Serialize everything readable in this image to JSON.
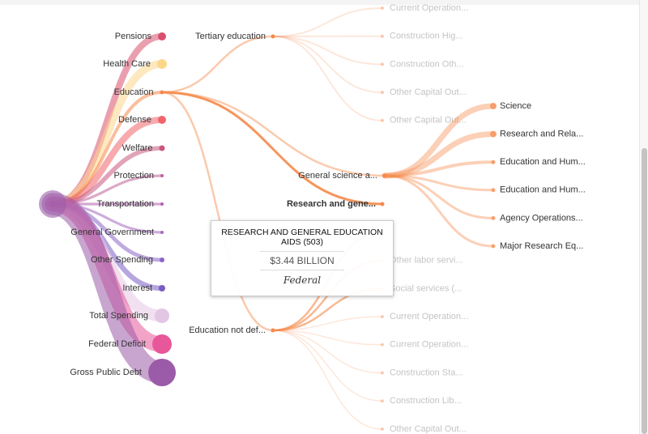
{
  "root_color": "#9b5ba8",
  "level1": [
    {
      "label": "Pensions",
      "color": "#d9506e",
      "r": 5
    },
    {
      "label": "Health Care",
      "color": "#fdd68a",
      "r": 6
    },
    {
      "label": "Education",
      "color": "#f5894a",
      "r": 2.5
    },
    {
      "label": "Defense",
      "color": "#f0656a",
      "r": 5
    },
    {
      "label": "Welfare",
      "color": "#c9577f",
      "r": 3.5
    },
    {
      "label": "Protection",
      "color": "#c0609a",
      "r": 2
    },
    {
      "label": "Transportation",
      "color": "#b25fb0",
      "r": 2
    },
    {
      "label": "General Government",
      "color": "#a46ac0",
      "r": 2
    },
    {
      "label": "Other Spending",
      "color": "#8b66c8",
      "r": 3
    },
    {
      "label": "Interest",
      "color": "#7a5cc4",
      "r": 4
    },
    {
      "label": "Total Spending",
      "color": "#e3c6e3",
      "r": 9
    },
    {
      "label": "Federal Deficit",
      "color": "#e8579a",
      "r": 12
    },
    {
      "label": "Gross Public Debt",
      "color": "#9b5ba8",
      "r": 17
    }
  ],
  "level2": [
    {
      "label": "Tertiary education",
      "active": true
    },
    {
      "label": "General science a...",
      "active": true
    },
    {
      "label": "Research and gene...",
      "active": true,
      "highlight": true
    },
    {
      "label": "Education not def...",
      "active": true
    }
  ],
  "tertiary_children": [
    "Current Operation...",
    "Construction Hig...",
    "Construction Oth...",
    "Other Capital Out...",
    "Other Capital Out..."
  ],
  "science_children": [
    "Science",
    "Research and Rela...",
    "Education and Hum...",
    "Education and Hum...",
    "Agency Operations...",
    "Major Research Eq..."
  ],
  "not_defined_children": [
    "",
    "Other labor servi...",
    "Social services (...",
    "Current Operation...",
    "Current Operation...",
    "Construction Sta...",
    "Construction Lib...",
    "Other Capital Out..."
  ],
  "tooltip": {
    "title": "RESEARCH AND GENERAL EDUCATION AIDS (503)",
    "value": "$3.44 BILLION",
    "source": "Federal"
  },
  "accent": "#f5894a"
}
